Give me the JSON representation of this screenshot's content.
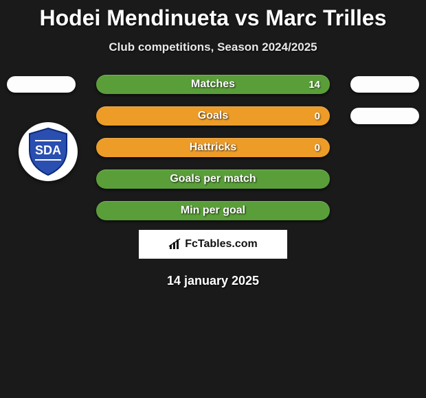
{
  "title": "Hodei Mendinueta vs Marc Trilles",
  "subtitle": "Club competitions, Season 2024/2025",
  "bars": [
    {
      "label": "Matches",
      "value_right": "14",
      "color": "#5a9e3a",
      "show_left_pill": true,
      "show_right_pill": true
    },
    {
      "label": "Goals",
      "value_right": "0",
      "color": "#ed9c28",
      "show_left_pill": false,
      "show_right_pill": true
    },
    {
      "label": "Hattricks",
      "value_right": "0",
      "color": "#ed9c28",
      "show_left_pill": false,
      "show_right_pill": false
    },
    {
      "label": "Goals per match",
      "value_right": "",
      "color": "#5a9e3a",
      "show_left_pill": false,
      "show_right_pill": false
    },
    {
      "label": "Min per goal",
      "value_right": "",
      "color": "#5a9e3a",
      "show_left_pill": false,
      "show_right_pill": false
    }
  ],
  "badge": {
    "initials": "SDA",
    "bg": "#ffffff",
    "shield_fill": "#2a4fb0",
    "shield_stroke": "#0b2a7a"
  },
  "fctables_label": "FcTables.com",
  "date": "14 january 2025",
  "colors": {
    "page_bg": "#1a1a1a",
    "text": "#ffffff",
    "pill_bg": "#fdfdfd"
  }
}
